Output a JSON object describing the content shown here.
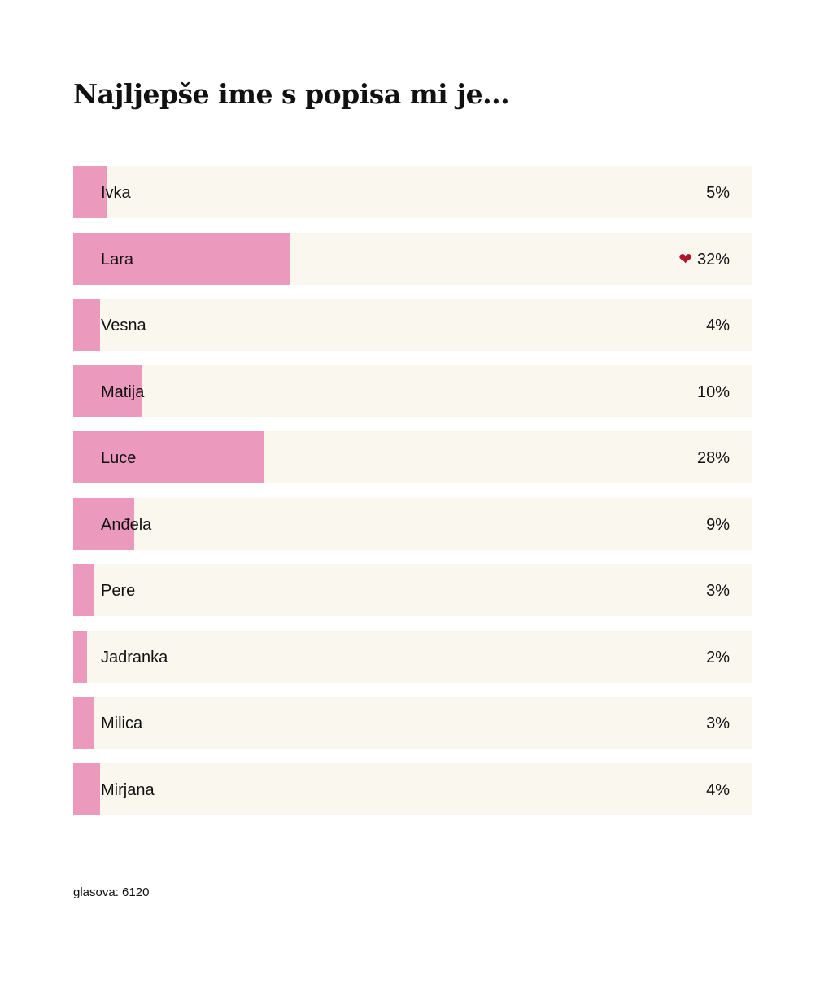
{
  "title": "Najljepše ime s popisa mi je...",
  "footer": {
    "votes_label": "glasova: 6120"
  },
  "colors": {
    "bar": "#eb9abd",
    "track": "#faf7ee",
    "heart": "#b0142a",
    "text": "#111111"
  },
  "options": [
    {
      "name": "Ivka",
      "pct": 5,
      "label": "5%",
      "voted": false
    },
    {
      "name": "Lara",
      "pct": 32,
      "label": "32%",
      "voted": true,
      "icon": "heart-icon"
    },
    {
      "name": "Vesna",
      "pct": 4,
      "label": "4%",
      "voted": false
    },
    {
      "name": "Matija",
      "pct": 10,
      "label": "10%",
      "voted": false
    },
    {
      "name": "Luce",
      "pct": 28,
      "label": "28%",
      "voted": false
    },
    {
      "name": "Anđela",
      "pct": 9,
      "label": "9%",
      "voted": false
    },
    {
      "name": "Pere",
      "pct": 3,
      "label": "3%",
      "voted": false
    },
    {
      "name": "Jadranka",
      "pct": 2,
      "label": "2%",
      "voted": false
    },
    {
      "name": "Milica",
      "pct": 3,
      "label": "3%",
      "voted": false
    },
    {
      "name": "Mirjana",
      "pct": 4,
      "label": "4%",
      "voted": false
    }
  ],
  "chart_data": {
    "type": "bar",
    "orientation": "horizontal",
    "title": "Najljepše ime s popisa mi je...",
    "categories": [
      "Ivka",
      "Lara",
      "Vesna",
      "Matija",
      "Luce",
      "Anđela",
      "Pere",
      "Jadranka",
      "Milica",
      "Mirjana"
    ],
    "values": [
      5,
      32,
      4,
      10,
      28,
      9,
      3,
      2,
      3,
      4
    ],
    "unit": "%",
    "xlabel": "",
    "ylabel": "",
    "xlim": [
      0,
      100
    ],
    "grid": false,
    "legend": null,
    "annotations": [
      "heart marker on Lara (user's vote)",
      "glasova: 6120"
    ],
    "total_votes": 6120
  }
}
